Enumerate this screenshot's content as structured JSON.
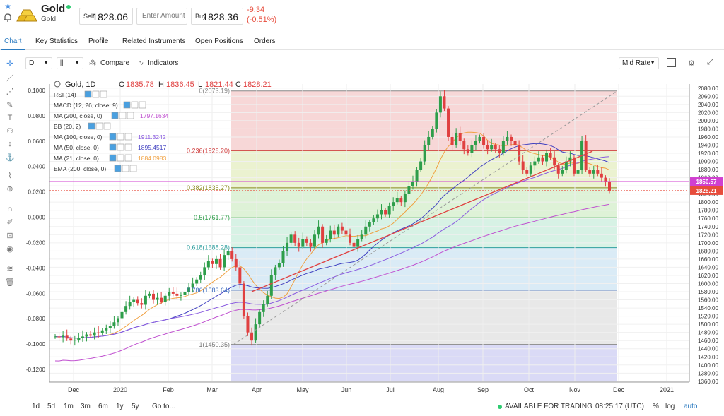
{
  "instrument": {
    "name": "Gold",
    "sub": "Gold",
    "sell_label": "Sell",
    "sell_price": "1828.06",
    "amount_placeholder": "Enter Amount",
    "buy_label": "Buy",
    "buy_price": "1828.36",
    "change": "-9.34",
    "change_pct": "(-0.51%)"
  },
  "tabs": [
    "Chart",
    "Key Statistics",
    "Profile",
    "Related Instruments",
    "Open Positions",
    "Orders"
  ],
  "toolbar": {
    "interval": "D",
    "compare": "Compare",
    "indicators": "Indicators",
    "price_type": "Mid Rate"
  },
  "ohlc": {
    "symbol": "Gold, 1D",
    "o_label": "O",
    "o": "1835.78",
    "h_label": "H",
    "h": "1836.45",
    "l_label": "L",
    "l": "1821.44",
    "c_label": "C",
    "c": "1828.21"
  },
  "indicators_list": [
    {
      "label": "RSI (14)",
      "value": ""
    },
    {
      "label": "MACD (12, 26, close, 9)",
      "value": ""
    },
    {
      "label": "MA (200, close, 0)",
      "value": "1797.1634",
      "color": "#c050d0"
    },
    {
      "label": "BB (20, 2)",
      "value": ""
    },
    {
      "label": "MA (100, close, 0)",
      "value": "1911.3242",
      "color": "#8a5ce0"
    },
    {
      "label": "MA (50, close, 0)",
      "value": "1895.4517",
      "color": "#4040c0"
    },
    {
      "label": "MA (21, close, 0)",
      "value": "1884.0983",
      "color": "#f0a040"
    },
    {
      "label": "EMA (200, close, 0)",
      "value": ""
    }
  ],
  "chart_data": {
    "type": "candlestick",
    "x_ticks": [
      "Dec",
      "2020",
      "Feb",
      "Mar",
      "Apr",
      "May",
      "Jun",
      "Jul",
      "Aug",
      "Sep",
      "Oct",
      "Nov",
      "Dec",
      "2021"
    ],
    "left_axis_ticks": [
      "0.1000",
      "0.0800",
      "0.0600",
      "0.0400",
      "0.0200",
      "0.0000",
      "-0.0200",
      "-0.0400",
      "-0.0600",
      "-0.0800",
      "-0.1000",
      "-0.1200"
    ],
    "right_axis_ticks": [
      "2080.00",
      "2060.00",
      "2040.00",
      "2020.00",
      "2000.00",
      "1980.00",
      "1960.00",
      "1940.00",
      "1920.00",
      "1900.00",
      "1880.00",
      "1860.00",
      "1840.00",
      "1820.00",
      "1800.00",
      "1780.00",
      "1760.00",
      "1740.00",
      "1720.00",
      "1700.00",
      "1680.00",
      "1660.00",
      "1640.00",
      "1620.00",
      "1600.00",
      "1580.00",
      "1560.00",
      "1540.00",
      "1520.00",
      "1500.00",
      "1480.00",
      "1460.00",
      "1440.00",
      "1420.00",
      "1400.00",
      "1380.00",
      "1360.00"
    ],
    "y_range": [
      1358,
      2090
    ],
    "fib_levels": [
      {
        "label": "0(2073.19)",
        "price": 2073.19,
        "color": "#888888"
      },
      {
        "label": "0.236(1926.20)",
        "price": 1926.2,
        "color": "#d04040"
      },
      {
        "label": "0.382(1835.27)",
        "price": 1835.27,
        "color": "#8a8a20"
      },
      {
        "label": "0.5(1761.77)",
        "price": 1761.77,
        "color": "#2e9e4a"
      },
      {
        "label": "0.618(1688.28)",
        "price": 1688.28,
        "color": "#2e9e9e"
      },
      {
        "label": "0.786(1583.64)",
        "price": 1583.64,
        "color": "#3e6ec0"
      },
      {
        "label": "1(1450.35)",
        "price": 1450.35,
        "color": "#777777"
      }
    ],
    "price_badges": [
      {
        "label": "1850.57",
        "price": 1850.57,
        "color": "#d040d0"
      },
      {
        "label": "1828.21",
        "price": 1828.21,
        "color": "#e74c3c"
      }
    ],
    "closes": [
      1470,
      1468,
      1472,
      1465,
      1460,
      1462,
      1466,
      1470,
      1475,
      1472,
      1480,
      1478,
      1485,
      1490,
      1495,
      1505,
      1515,
      1530,
      1545,
      1555,
      1560,
      1552,
      1548,
      1570,
      1575,
      1560,
      1565,
      1555,
      1570,
      1580,
      1575,
      1570,
      1572,
      1580,
      1590,
      1600,
      1610,
      1620,
      1640,
      1655,
      1648,
      1660,
      1640,
      1670,
      1680,
      1660,
      1640,
      1600,
      1520,
      1480,
      1460,
      1500,
      1530,
      1550,
      1570,
      1620,
      1640,
      1650,
      1680,
      1700,
      1720,
      1700,
      1690,
      1710,
      1700,
      1690,
      1720,
      1740,
      1700,
      1710,
      1730,
      1720,
      1740,
      1730,
      1720,
      1700,
      1690,
      1710,
      1720,
      1740,
      1750,
      1760,
      1770,
      1780,
      1770,
      1790,
      1800,
      1810,
      1800,
      1820,
      1840,
      1850,
      1880,
      1900,
      1940,
      1960,
      1980,
      2020,
      2060,
      2030,
      1960,
      1940,
      1970,
      1950,
      1930,
      1920,
      1940,
      1950,
      1960,
      1940,
      1930,
      1940,
      1930,
      1920,
      1950,
      1960,
      1950,
      1940,
      1900,
      1880,
      1870,
      1890,
      1900,
      1910,
      1900,
      1920,
      1910,
      1890,
      1870,
      1880,
      1900,
      1910,
      1870,
      1880,
      1950,
      1880,
      1870,
      1880,
      1870,
      1860,
      1850,
      1828
    ],
    "chart_title": ""
  },
  "bottom": {
    "periods": [
      "1d",
      "5d",
      "1m",
      "3m",
      "6m",
      "1y",
      "5y",
      "Go to..."
    ],
    "status": "AVAILABLE FOR TRADING",
    "time": "08:25:17 (UTC)",
    "pct": "%",
    "log": "log",
    "auto": "auto"
  }
}
